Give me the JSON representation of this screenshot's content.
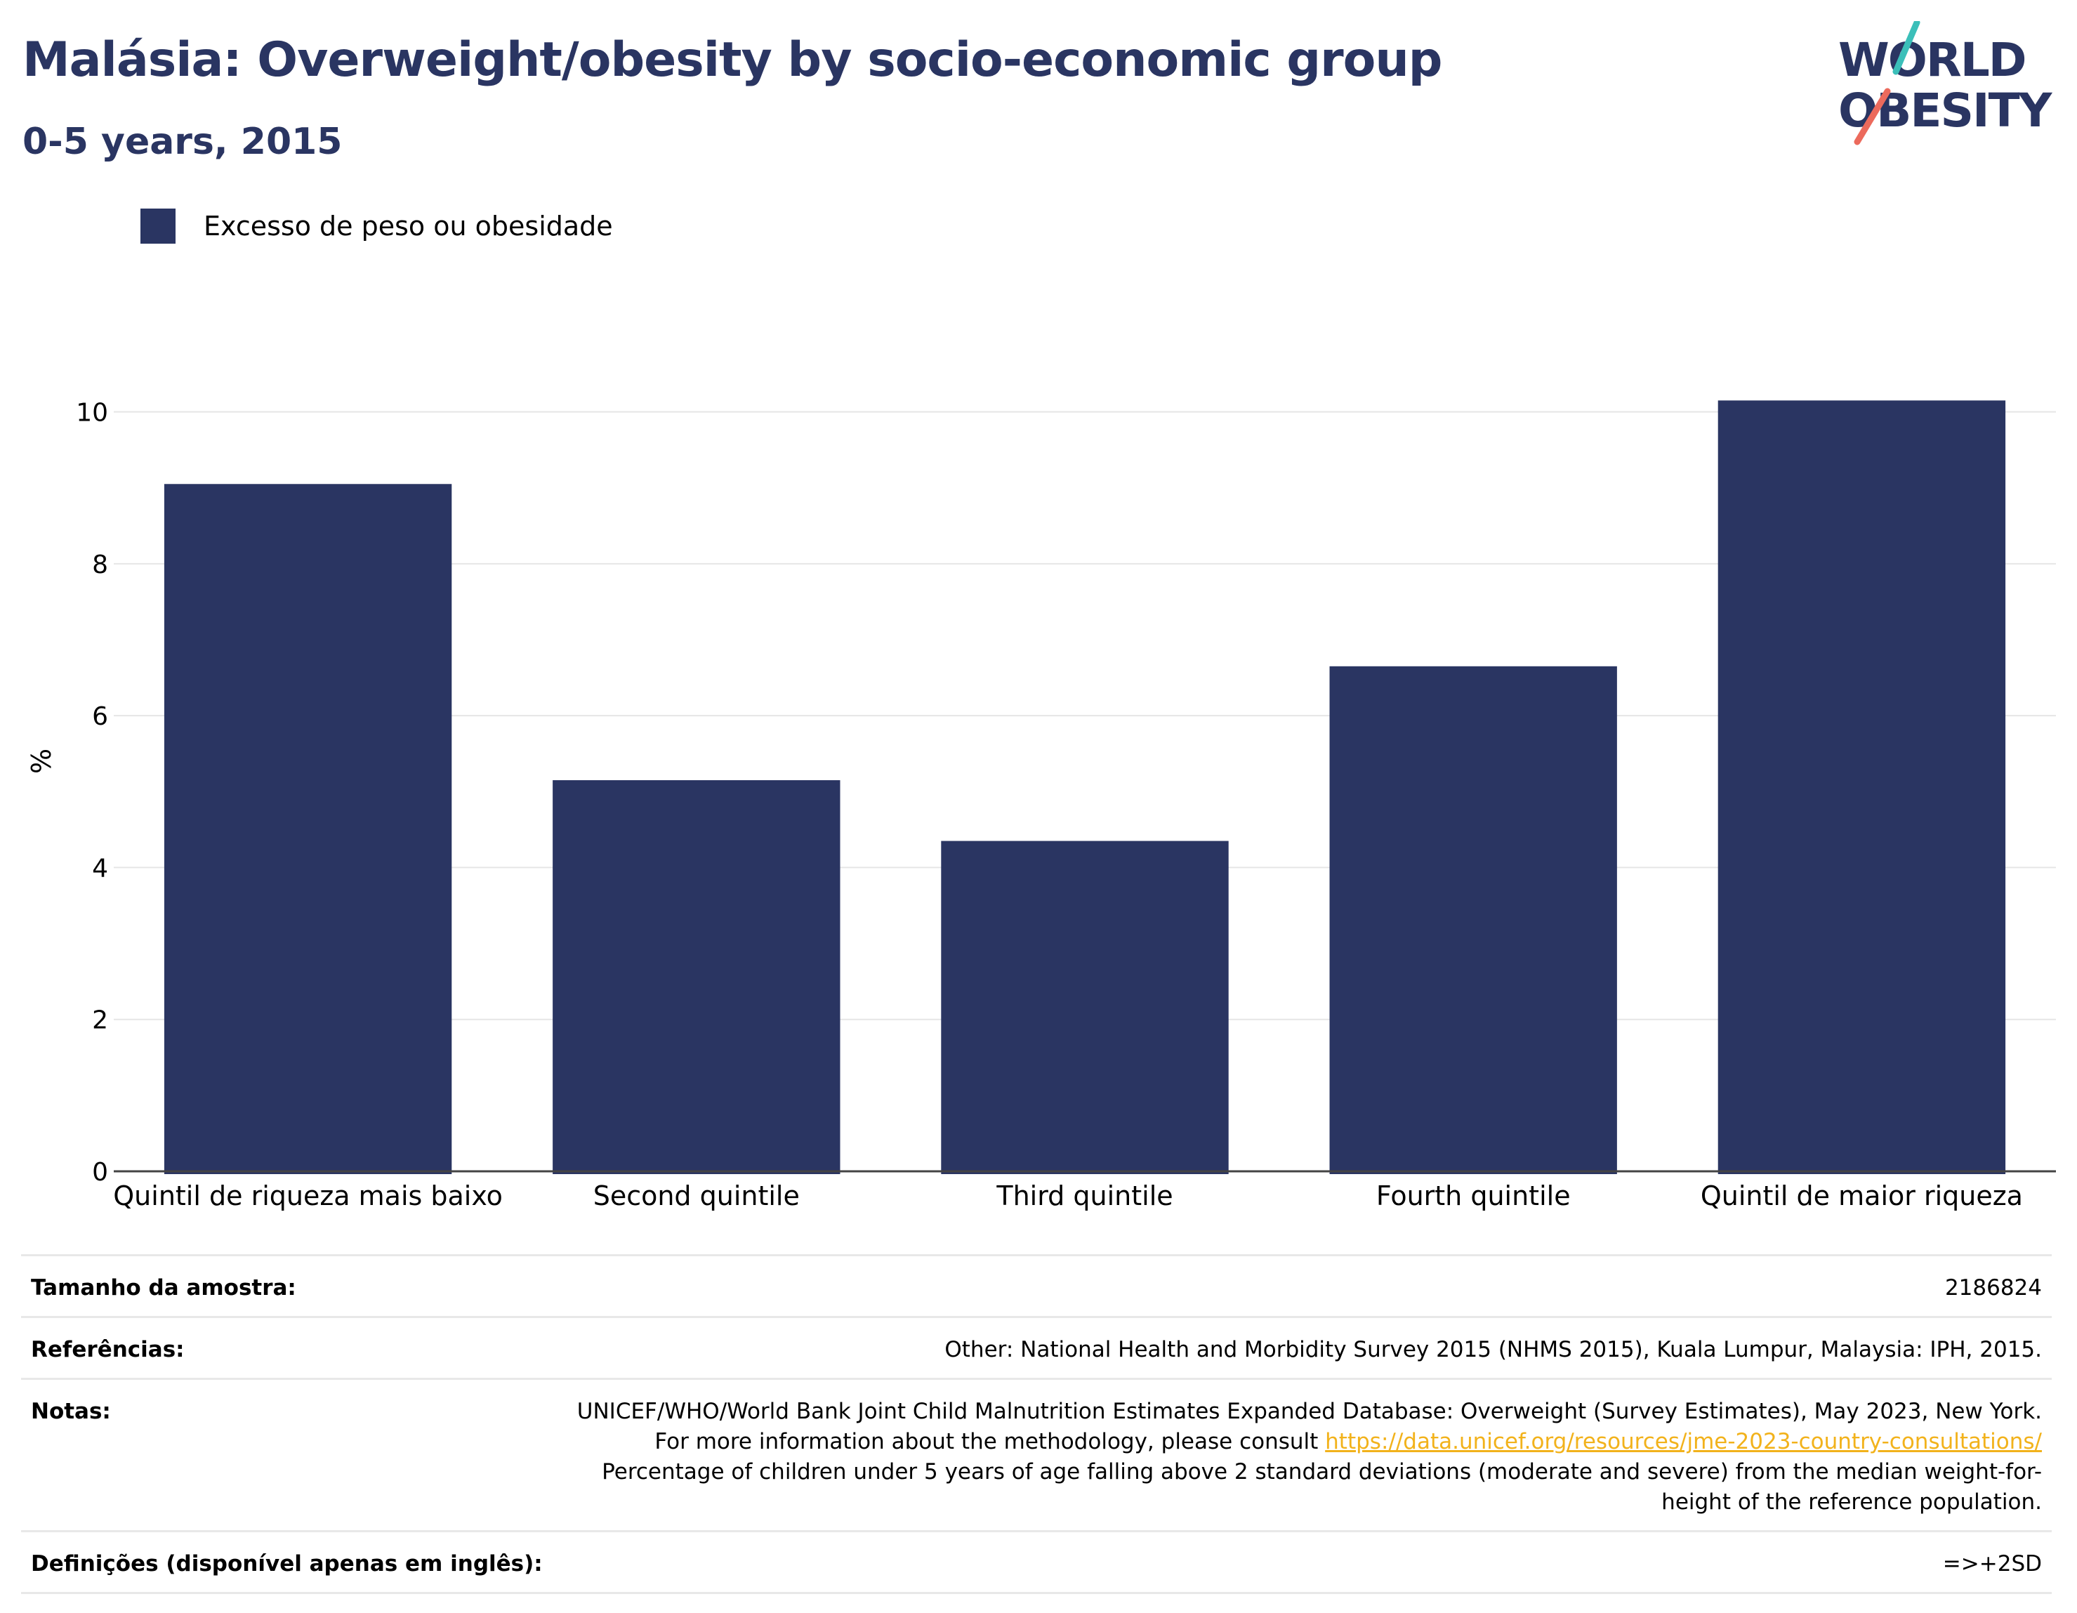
{
  "header": {
    "title": "Malásia: Overweight/obesity by socio-economic group",
    "subtitle": "0-5 years, 2015"
  },
  "logo": {
    "line1": "WORLD",
    "line2": "OBESITY"
  },
  "legend": {
    "label": "Excesso de peso ou obesidade",
    "color": "#2a3562"
  },
  "chart_data": {
    "type": "bar",
    "categories": [
      "Quintil de riqueza mais baixo",
      "Second quintile",
      "Third quintile",
      "Fourth quintile",
      "Quintil de maior riqueza"
    ],
    "series": [
      {
        "name": "Excesso de peso ou obesidade",
        "values": [
          9.05,
          5.15,
          4.35,
          6.65,
          10.15
        ],
        "color": "#2a3562"
      }
    ],
    "ylabel": "%",
    "ylim": [
      0,
      10.8
    ],
    "yticks": [
      0,
      2,
      4,
      6,
      8,
      10
    ],
    "grid": true
  },
  "footer": {
    "sample_label": "Tamanho da amostra:",
    "sample_value": "2186824",
    "refs_label": "Referências:",
    "refs_value": "Other: National Health and Morbidity Survey 2015 (NHMS 2015), Kuala Lumpur, Malaysia: IPH, 2015.",
    "notes_label": "Notas:",
    "notes_text1": "UNICEF/WHO/World Bank Joint Child Malnutrition Estimates Expanded Database: Overweight (Survey Estimates), May 2023, New York. For more information about the methodology, please consult ",
    "notes_link": "https://data.unicef.org/resources/jme-2023-country-consultations/",
    "notes_text2": "Percentage of children under 5 years of age falling above 2 standard deviations (moderate and severe) from the median weight-for-height of the reference population.",
    "defs_label": "Definições (disponível apenas em inglês):",
    "defs_value": "=>+2SD"
  }
}
